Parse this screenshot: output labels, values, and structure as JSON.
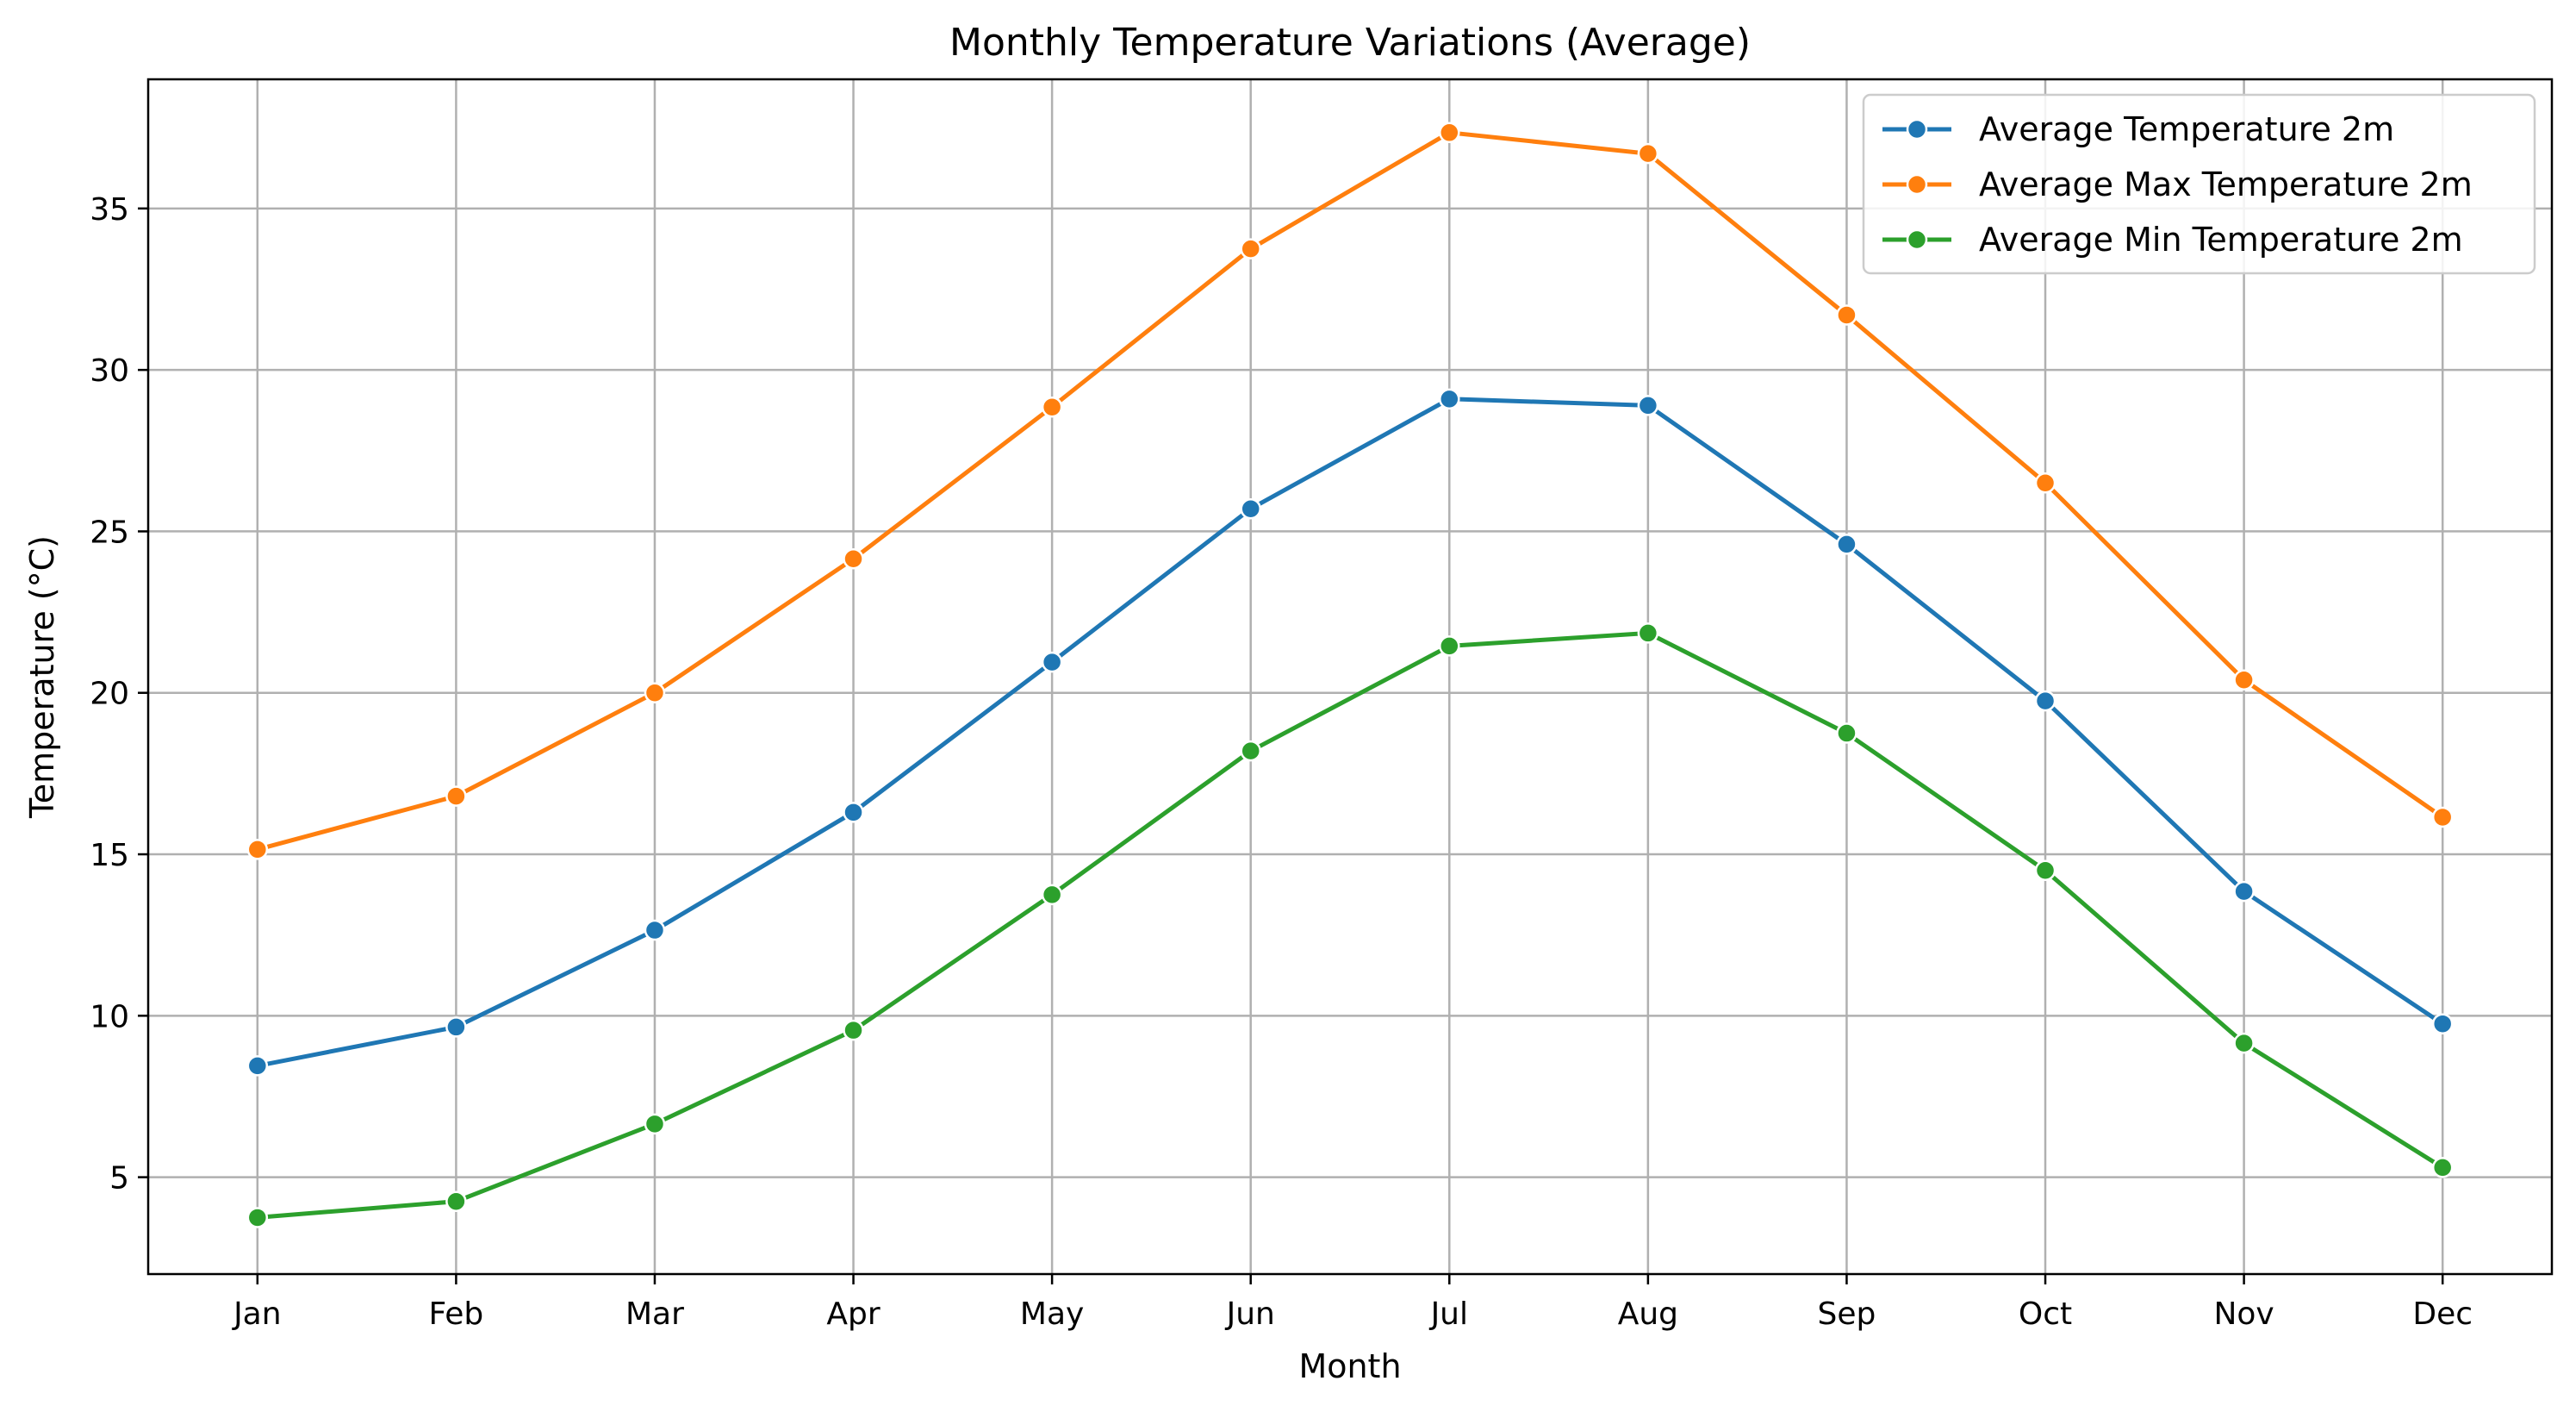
{
  "chart_data": {
    "type": "line",
    "title": "Monthly Temperature Variations (Average)",
    "xlabel": "Month",
    "ylabel": "Temperature (°C)",
    "categories": [
      "Jan",
      "Feb",
      "Mar",
      "Apr",
      "May",
      "Jun",
      "Jul",
      "Aug",
      "Sep",
      "Oct",
      "Nov",
      "Dec"
    ],
    "ylim": [
      2,
      39
    ],
    "yticks": [
      5,
      10,
      15,
      20,
      25,
      30,
      35
    ],
    "grid": true,
    "legend_position": "top-right",
    "series": [
      {
        "name": "Average Temperature 2m",
        "color": "#1f77b4",
        "values": [
          8.45,
          9.65,
          12.65,
          16.3,
          20.95,
          25.7,
          29.1,
          28.9,
          24.6,
          19.75,
          13.85,
          9.75
        ]
      },
      {
        "name": "Average Max Temperature 2m",
        "color": "#ff7f0e",
        "values": [
          15.15,
          16.8,
          20.0,
          24.15,
          28.85,
          33.75,
          37.35,
          36.7,
          31.7,
          26.5,
          20.4,
          16.15
        ]
      },
      {
        "name": "Average Min Temperature 2m",
        "color": "#2ca02c",
        "values": [
          3.75,
          4.25,
          6.65,
          9.55,
          13.75,
          18.2,
          21.45,
          21.85,
          18.75,
          14.5,
          9.15,
          5.3
        ]
      }
    ]
  }
}
